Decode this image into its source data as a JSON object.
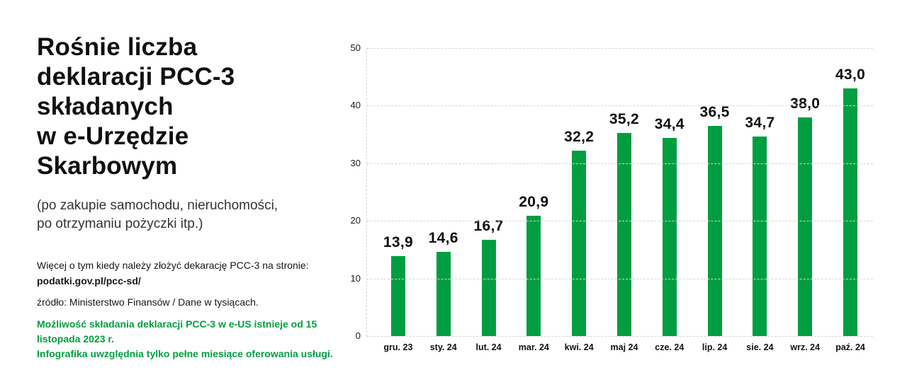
{
  "left": {
    "title": "Rośnie liczba\ndeklaracji PCC-3\nskładanych\nw e-Urzędzie\nSkarbowym",
    "subtitle": "(po zakupie samochodu, nieruchomości,\npo otrzymaniu pożyczki itp.)",
    "info_line": "Więcej o tym kiedy należy złożyć dekarację PCC-3 na stronie:",
    "info_link": "podatki.gov.pl/pcc-sd/",
    "source": "źródło: Ministerstwo Finansów / Dane w tysiącach.",
    "note": "Możliwość składania deklaracji PCC-3 w e-US istnieje od 15 listopada 2023 r.\nInfografika uwzględnia tylko pełne miesiące oferowania usługi."
  },
  "colors": {
    "bar_green": "#009e41",
    "note_green": "#009e41",
    "grid_gray": "#d5d5d5",
    "text_dark": "#101010"
  },
  "chart_data": {
    "type": "bar",
    "title": "",
    "xlabel": "",
    "ylabel": "",
    "categories": [
      "gru. 23",
      "sty. 24",
      "lut. 24",
      "mar. 24",
      "kwi. 24",
      "maj 24",
      "cze. 24",
      "lip. 24",
      "sie. 24",
      "wrz. 24",
      "paź. 24"
    ],
    "values": [
      13.9,
      14.6,
      16.7,
      20.9,
      32.2,
      35.2,
      34.4,
      36.5,
      34.7,
      38.0,
      43.0
    ],
    "value_labels": [
      "13,9",
      "14,6",
      "16,7",
      "20,9",
      "32,2",
      "35,2",
      "34,4",
      "36,5",
      "34,7",
      "38,0",
      "43,0"
    ],
    "yticks": [
      0,
      10,
      20,
      30,
      40,
      50
    ],
    "ylim": [
      0,
      50
    ],
    "grid": "horizontal dashed",
    "legend": "none",
    "bar_color": "#009e41"
  }
}
